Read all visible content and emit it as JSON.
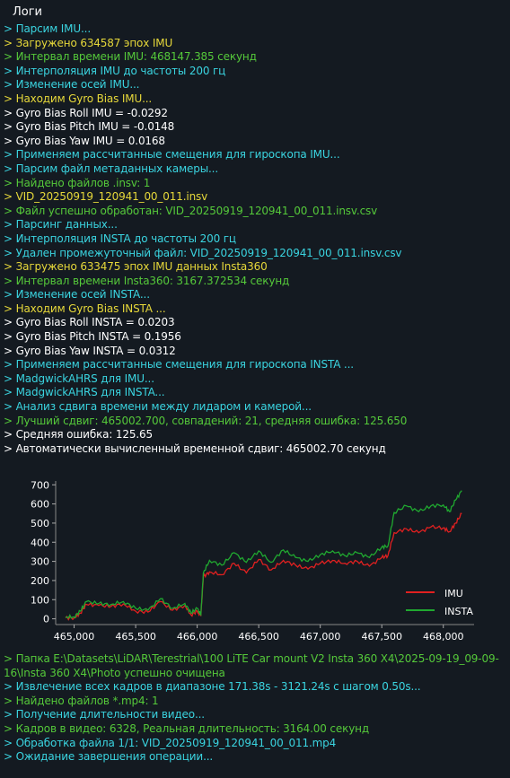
{
  "panel": {
    "title": "Логи",
    "colors": {
      "background": "#141a21",
      "cyan": "#3ad4e0",
      "yellow": "#e6d83a",
      "green": "#55c93a",
      "white": "#ffffff"
    }
  },
  "log_top": [
    {
      "text": "> Парсим IMU...",
      "color": "cyan"
    },
    {
      "text": "> Загружено 634587 эпох IMU",
      "color": "yellow"
    },
    {
      "text": "> Интервал времени IMU: 468147.385 секунд",
      "color": "green"
    },
    {
      "text": "> Интерполяция IMU до частоты 200 гц",
      "color": "cyan"
    },
    {
      "text": "> Изменение осей IMU...",
      "color": "cyan"
    },
    {
      "text": "> Находим Gyro Bias IMU...",
      "color": "yellow"
    },
    {
      "text": "> Gyro Bias Roll IMU = -0.0292",
      "color": "white"
    },
    {
      "text": "> Gyro Bias Pitch IMU = -0.0148",
      "color": "white"
    },
    {
      "text": "> Gyro Bias Yaw IMU = 0.0168",
      "color": "white"
    },
    {
      "text": "> Применяем рассчитанные смещения для гироскопа IMU...",
      "color": "cyan"
    },
    {
      "text": "> Парсим файл метаданных камеры...",
      "color": "cyan"
    },
    {
      "text": "> Найдено файлов .insv: 1",
      "color": "green"
    },
    {
      "text": ">   VID_20250919_120941_00_011.insv",
      "color": "yellow"
    },
    {
      "text": "> Файл успешно обработан: VID_20250919_120941_00_011.insv.csv",
      "color": "green"
    },
    {
      "text": "> Парсинг данных...",
      "color": "cyan"
    },
    {
      "text": "> Интерполяция INSTA до частоты 200 гц",
      "color": "cyan"
    },
    {
      "text": "> Удален промежуточный файл: VID_20250919_120941_00_011.insv.csv",
      "color": "cyan"
    },
    {
      "text": "> Загружено 633475 эпох IMU данных Insta360",
      "color": "yellow"
    },
    {
      "text": "> Интервал времени Insta360: 3167.372534 секунд",
      "color": "green"
    },
    {
      "text": "> Изменение осей INSTA...",
      "color": "cyan"
    },
    {
      "text": "> Находим Gyro Bias INSTA ...",
      "color": "yellow"
    },
    {
      "text": "> Gyro Bias Roll INSTA = 0.0203",
      "color": "white"
    },
    {
      "text": "> Gyro Bias Pitch INSTA = 0.1956",
      "color": "white"
    },
    {
      "text": "> Gyro Bias Yaw INSTA = 0.0312",
      "color": "white"
    },
    {
      "text": "> Применяем рассчитанные смещения для гироскопа INSTA ...",
      "color": "cyan"
    },
    {
      "text": "> MadgwickAHRS для IMU...",
      "color": "cyan"
    },
    {
      "text": "> MadgwickAHRS для INSTA...",
      "color": "cyan"
    },
    {
      "text": "> Анализ сдвига времени между лидаром и камерой...",
      "color": "cyan"
    },
    {
      "text": "> Лучший сдвиг: 465002.700, совпадений: 21, средняя ошибка: 125.650",
      "color": "green"
    },
    {
      "text": "> Средняя ошибка: 125.65",
      "color": "white"
    },
    {
      "text": "> Автоматически вычисленный временной сдвиг: 465002.70 секунд",
      "color": "white"
    }
  ],
  "log_bottom": [
    {
      "text": "> Папка E:\\Datasets\\LiDAR\\Terestrial\\100 LiTE Car mount V2 Insta 360 X4\\2025-09-19_09-09-16\\Insta 360 X4\\Photo успешно очищена",
      "color": "green",
      "wrap": true
    },
    {
      "text": "> Извлечение всех кадров в диапазоне 171.38s - 3121.24s с шагом 0.50s...",
      "color": "cyan"
    },
    {
      "text": "> Найдено файлов *.mp4: 1",
      "color": "green"
    },
    {
      "text": "> Получение длительности видео...",
      "color": "cyan"
    },
    {
      "text": "> Кадров в видео: 6328, Реальная длительность: 3164.00 секунд",
      "color": "green"
    },
    {
      "text": "> Обработка файла 1/1: VID_20250919_120941_00_011.mp4",
      "color": "cyan"
    },
    {
      "text": "> Ожидание завершения операции...",
      "color": "cyan"
    }
  ],
  "chart_data": {
    "type": "line",
    "xlim": [
      464850,
      468250
    ],
    "ylim": [
      -30,
      720
    ],
    "x_ticks": [
      465000,
      465500,
      466000,
      466500,
      467000,
      467500,
      468000
    ],
    "x_tick_labels": [
      "465,000",
      "465,500",
      "466,000",
      "466,500",
      "467,000",
      "467,500",
      "468,000"
    ],
    "y_ticks": [
      0,
      100,
      200,
      300,
      400,
      500,
      600,
      700
    ],
    "y_tick_labels": [
      "0",
      "100",
      "200",
      "300",
      "400",
      "500",
      "600",
      "700"
    ],
    "grid": false,
    "legend": "bottom-right",
    "series": [
      {
        "name": "IMU",
        "color": "#e02020",
        "x": [
          464930,
          465000,
          465050,
          465100,
          465200,
          465300,
          465400,
          465500,
          465600,
          465700,
          465800,
          465900,
          465950,
          466000,
          466030,
          466050,
          466100,
          466200,
          466300,
          466400,
          466500,
          466600,
          466700,
          466800,
          466900,
          467000,
          467100,
          467200,
          467300,
          467400,
          467500,
          467550,
          467600,
          467700,
          467800,
          467900,
          468000,
          468050,
          468100,
          468150
        ],
        "y": [
          5,
          5,
          30,
          75,
          70,
          65,
          78,
          40,
          35,
          90,
          45,
          70,
          20,
          40,
          15,
          220,
          245,
          230,
          290,
          240,
          310,
          255,
          305,
          280,
          260,
          290,
          305,
          290,
          300,
          275,
          320,
          330,
          450,
          470,
          450,
          480,
          475,
          455,
          500,
          550
        ]
      },
      {
        "name": "INSTA",
        "color": "#20a830",
        "x": [
          464930,
          465000,
          465050,
          465100,
          465200,
          465300,
          465400,
          465500,
          465600,
          465700,
          465800,
          465900,
          465950,
          466000,
          466030,
          466050,
          466100,
          466200,
          466300,
          466400,
          466500,
          466600,
          466700,
          466800,
          466900,
          467000,
          467100,
          467200,
          467300,
          467400,
          467500,
          467550,
          467600,
          467700,
          467800,
          467900,
          468000,
          468050,
          468100,
          468150
        ],
        "y": [
          10,
          10,
          40,
          90,
          80,
          75,
          90,
          55,
          45,
          105,
          55,
          80,
          30,
          55,
          20,
          240,
          305,
          280,
          345,
          295,
          355,
          295,
          360,
          320,
          300,
          335,
          355,
          330,
          345,
          320,
          375,
          380,
          555,
          590,
          560,
          590,
          595,
          560,
          620,
          670
        ]
      }
    ]
  }
}
